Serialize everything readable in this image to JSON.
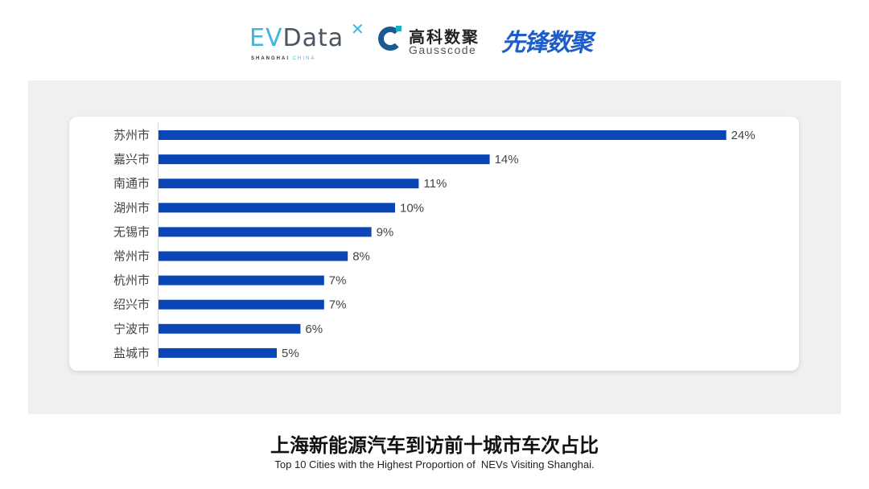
{
  "logos": {
    "evdata": {
      "ev": "EV",
      "rest": "Data",
      "tagline_a": "SHANGHAI",
      "tagline_b": "CHINA"
    },
    "gausscode": {
      "cn": "高科数聚",
      "en": "Gausscode"
    },
    "xianfeng": "先锋数聚"
  },
  "chart_data": {
    "type": "bar",
    "orientation": "horizontal",
    "categories": [
      "苏州市",
      "嘉兴市",
      "南通市",
      "湖州市",
      "无锡市",
      "常州市",
      "杭州市",
      "绍兴市",
      "宁波市",
      "盐城市"
    ],
    "values": [
      24,
      14,
      11,
      10,
      9,
      8,
      7,
      7,
      6,
      5
    ],
    "data_labels": [
      "24%",
      "14%",
      "11%",
      "10%",
      "9%",
      "8%",
      "7%",
      "7%",
      "6%",
      "5%"
    ],
    "unit": "%",
    "bar_color": "#0a46b8",
    "grid": false,
    "legend": "none"
  },
  "title": "上海新能源汽车到访前十城市车次占比",
  "subtitle": "Top 10 Cities with the Highest Proportion of  NEVs Visiting Shanghai."
}
